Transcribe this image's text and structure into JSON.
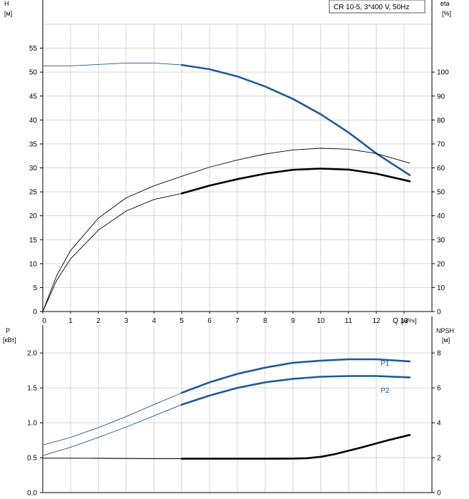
{
  "chart_data": [
    {
      "type": "line",
      "title": "CR 10-5, 3*400 V, 50Hz",
      "x_label": "Q",
      "x_unit": "[м³/ч]",
      "x_range": [
        0,
        14
      ],
      "x_ticks": [
        0,
        1,
        2,
        3,
        4,
        5,
        6,
        7,
        8,
        9,
        10,
        11,
        12,
        13
      ],
      "y_left_label": "H",
      "y_left_unit": "[м]",
      "y_left_range": [
        0,
        60
      ],
      "y_left_ticks": [
        0,
        5,
        10,
        15,
        20,
        25,
        30,
        35,
        40,
        45,
        50,
        55
      ],
      "y_right_label": "eta",
      "y_right_unit": "[%]",
      "y_right_range": [
        0,
        120
      ],
      "y_right_ticks": [
        0,
        10,
        20,
        30,
        40,
        50,
        60,
        70,
        80,
        90,
        100
      ],
      "grid": true,
      "series": [
        {
          "axis": "left",
          "color": "#1f5a96",
          "x": [
            0,
            1,
            2,
            3,
            4,
            5,
            6,
            7,
            8,
            9,
            10,
            11,
            12,
            13.2
          ],
          "y": [
            51.3,
            51.3,
            51.6,
            51.9,
            51.9,
            51.5,
            50.6,
            49.1,
            47.0,
            44.4,
            41.2,
            37.4,
            33.0,
            28.5
          ],
          "operating_range": [
            5,
            13.2
          ]
        },
        {
          "axis": "right",
          "color": "#000000",
          "x": [
            0,
            0.5,
            1,
            2,
            3,
            4,
            5,
            6,
            7,
            8,
            9,
            10,
            11,
            12,
            13.2
          ],
          "y": [
            0,
            15,
            25.5,
            39,
            47.5,
            52.5,
            56.5,
            60.3,
            63.3,
            65.8,
            67.5,
            68.2,
            67.8,
            66.0,
            62.0
          ]
        },
        {
          "axis": "right",
          "color": "#000000",
          "x": [
            0,
            0.5,
            1,
            2,
            3,
            4,
            5,
            6,
            7,
            8,
            9,
            10,
            11,
            12,
            13.2
          ],
          "y": [
            0,
            13,
            22,
            34,
            42,
            46.8,
            49.3,
            52.6,
            55.3,
            57.6,
            59.2,
            59.7,
            59.3,
            57.6,
            54.4
          ],
          "operating_range": [
            5,
            13.2
          ]
        }
      ]
    },
    {
      "type": "line",
      "x_range": [
        0,
        14
      ],
      "y_left_label": "P",
      "y_left_unit": "[кВт]",
      "y_left_range": [
        0,
        2.4
      ],
      "y_left_ticks": [
        0.0,
        0.5,
        1.0,
        1.5,
        2.0
      ],
      "y_left_tick_labels": [
        "0.0",
        "0.5",
        "1.0",
        "1.5",
        "2.0"
      ],
      "y_right_label": "NPSH",
      "y_right_unit": "[м]",
      "y_right_range": [
        0,
        9.6
      ],
      "y_right_ticks": [
        0,
        2,
        4,
        6,
        8
      ],
      "grid": true,
      "series": [
        {
          "name": "P1",
          "axis": "left",
          "color": "#1f5a96",
          "x": [
            0,
            1,
            2,
            3,
            4,
            5,
            6,
            7,
            8,
            9,
            10,
            11,
            12,
            13.2
          ],
          "y": [
            0.68,
            0.79,
            0.93,
            1.09,
            1.26,
            1.43,
            1.58,
            1.7,
            1.79,
            1.86,
            1.89,
            1.91,
            1.91,
            1.88
          ],
          "operating_range": [
            5,
            13.2
          ]
        },
        {
          "name": "P2",
          "axis": "left",
          "color": "#1f5a96",
          "x": [
            0,
            1,
            2,
            3,
            4,
            5,
            6,
            7,
            8,
            9,
            10,
            11,
            12,
            13.2
          ],
          "y": [
            0.53,
            0.65,
            0.79,
            0.94,
            1.1,
            1.26,
            1.39,
            1.5,
            1.58,
            1.63,
            1.66,
            1.67,
            1.67,
            1.65
          ],
          "operating_range": [
            5,
            13.2
          ]
        },
        {
          "name": "NPSH",
          "axis": "right",
          "color": "#000000",
          "x": [
            0,
            2,
            4,
            5,
            6,
            7,
            8,
            9,
            9.5,
            10,
            10.5,
            11,
            11.5,
            12,
            12.5,
            13.2
          ],
          "y": [
            1.97,
            1.96,
            1.94,
            1.94,
            1.94,
            1.94,
            1.94,
            1.95,
            1.97,
            2.05,
            2.2,
            2.4,
            2.6,
            2.82,
            3.03,
            3.3
          ],
          "operating_range": [
            5,
            13.2
          ]
        }
      ]
    }
  ]
}
